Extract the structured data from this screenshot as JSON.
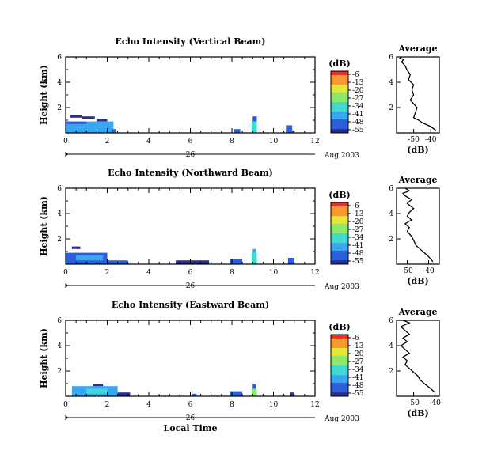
{
  "chart_data": [
    {
      "type": "heatmap",
      "title": "Echo Intensity (Vertical Beam)",
      "ylabel": "Height (km)",
      "xlim": [
        0,
        12
      ],
      "ylim": [
        0,
        6
      ],
      "xticks": [
        "0",
        "2",
        "4",
        "6",
        "8",
        "10",
        "12"
      ],
      "yticks": [
        "2",
        "4",
        "6"
      ],
      "date_label": "26",
      "month_label": "Aug 2003",
      "colorbar": {
        "label": "(dB)",
        "ticks": [
          "-6",
          "-13",
          "-20",
          "-27",
          "-34",
          "-41",
          "-48",
          "-55"
        ],
        "range": [
          -55,
          -6
        ]
      },
      "cells": [
        {
          "x": [
            0.2,
            0.8
          ],
          "y": [
            1.2,
            1.4
          ],
          "db": -55
        },
        {
          "x": [
            0.8,
            1.4
          ],
          "y": [
            1.1,
            1.3
          ],
          "db": -52
        },
        {
          "x": [
            1.5,
            2.0
          ],
          "y": [
            0.9,
            1.1
          ],
          "db": -53
        },
        {
          "x": [
            0.0,
            2.3
          ],
          "y": [
            0.0,
            0.9
          ],
          "db": -44
        },
        {
          "x": [
            0.0,
            1.0
          ],
          "y": [
            0.7,
            0.9
          ],
          "db": -50
        },
        {
          "x": [
            1.0,
            2.0
          ],
          "y": [
            0.1,
            0.8
          ],
          "db": -40
        },
        {
          "x": [
            2.2,
            2.4
          ],
          "y": [
            0.0,
            0.3
          ],
          "db": -49
        },
        {
          "x": [
            8.1,
            8.4
          ],
          "y": [
            0.0,
            0.3
          ],
          "db": -51
        },
        {
          "x": [
            8.95,
            9.2
          ],
          "y": [
            0.0,
            0.9
          ],
          "db": -36
        },
        {
          "x": [
            9.0,
            9.2
          ],
          "y": [
            0.9,
            1.3
          ],
          "db": -46
        },
        {
          "x": [
            10.6,
            10.9
          ],
          "y": [
            0.0,
            0.6
          ],
          "db": -50
        },
        {
          "x": [
            10.9,
            11.0
          ],
          "y": [
            0.0,
            0.2
          ],
          "db": -53
        }
      ],
      "average": {
        "title": "Average",
        "xlabel": "(dB)",
        "xlim": [
          -60,
          -35
        ],
        "xticks": [
          "-50",
          "-40"
        ],
        "yticks": [
          "2",
          "4",
          "6"
        ],
        "ylim": [
          0,
          6
        ],
        "x": [
          -37,
          -40,
          -45,
          -47,
          -50,
          -49,
          -48,
          -50,
          -52,
          -50,
          -51,
          -50,
          -53,
          -52,
          -54,
          -55,
          -57,
          -56,
          -58,
          -57
        ],
        "y": [
          0.2,
          0.5,
          0.8,
          1.0,
          1.2,
          1.6,
          2.0,
          2.3,
          2.6,
          3.0,
          3.4,
          3.8,
          4.2,
          4.6,
          5.0,
          5.3,
          5.6,
          5.8,
          5.9,
          6.0
        ]
      }
    },
    {
      "type": "heatmap",
      "title": "Echo Intensity (Northward Beam)",
      "ylabel": "Height (km)",
      "xlim": [
        0,
        12
      ],
      "ylim": [
        0,
        6
      ],
      "xticks": [
        "0",
        "2",
        "4",
        "6",
        "8",
        "10",
        "12"
      ],
      "yticks": [
        "2",
        "4",
        "6"
      ],
      "date_label": "26",
      "month_label": "Aug 2003",
      "colorbar": {
        "label": "(dB)",
        "ticks": [
          "-6",
          "-13",
          "-20",
          "-27",
          "-34",
          "-41",
          "-48",
          "-55"
        ],
        "range": [
          -55,
          -6
        ]
      },
      "cells": [
        {
          "x": [
            0.3,
            0.7
          ],
          "y": [
            1.2,
            1.4
          ],
          "db": -55
        },
        {
          "x": [
            0.0,
            2.0
          ],
          "y": [
            0.0,
            0.9
          ],
          "db": -45
        },
        {
          "x": [
            0.5,
            1.8
          ],
          "y": [
            0.3,
            0.7
          ],
          "db": -38
        },
        {
          "x": [
            2.0,
            3.0
          ],
          "y": [
            0.0,
            0.3
          ],
          "db": -50
        },
        {
          "x": [
            5.3,
            6.9
          ],
          "y": [
            0.0,
            0.3
          ],
          "db": -52
        },
        {
          "x": [
            7.9,
            8.5
          ],
          "y": [
            0.0,
            0.4
          ],
          "db": -51
        },
        {
          "x": [
            8.95,
            9.2
          ],
          "y": [
            0.0,
            0.9
          ],
          "db": -34
        },
        {
          "x": [
            9.0,
            9.15
          ],
          "y": [
            0.9,
            1.2
          ],
          "db": -44
        },
        {
          "x": [
            10.7,
            11.0
          ],
          "y": [
            0.0,
            0.5
          ],
          "db": -50
        }
      ],
      "average": {
        "title": "Average",
        "xlabel": "(dB)",
        "xlim": [
          -55,
          -35
        ],
        "xticks": [
          "-50",
          "-40"
        ],
        "yticks": [
          "2",
          "4",
          "6"
        ],
        "ylim": [
          0,
          6
        ],
        "x": [
          -38,
          -40,
          -42,
          -44,
          -46,
          -47,
          -48,
          -50,
          -49,
          -51,
          -48,
          -50,
          -49,
          -47,
          -50,
          -48,
          -51,
          -52,
          -49,
          -51
        ],
        "y": [
          0.2,
          0.6,
          0.9,
          1.2,
          1.5,
          1.9,
          2.2,
          2.6,
          2.9,
          3.2,
          3.5,
          3.8,
          4.1,
          4.4,
          4.8,
          5.1,
          5.4,
          5.6,
          5.8,
          6.0
        ]
      }
    },
    {
      "type": "heatmap",
      "title": "Echo Intensity (Eastward Beam)",
      "ylabel": "Height (km)",
      "xlabel": "Local Time",
      "xlim": [
        0,
        12
      ],
      "ylim": [
        0,
        6
      ],
      "xticks": [
        "0",
        "2",
        "4",
        "6",
        "8",
        "10",
        "12"
      ],
      "yticks": [
        "2",
        "4",
        "6"
      ],
      "date_label": "26",
      "month_label": "Aug 2003",
      "colorbar": {
        "label": "(dB)",
        "ticks": [
          "-6",
          "-13",
          "-20",
          "-27",
          "-34",
          "-41",
          "-48",
          "-55"
        ],
        "range": [
          -55,
          -6
        ]
      },
      "cells": [
        {
          "x": [
            0.3,
            2.5
          ],
          "y": [
            0.0,
            0.8
          ],
          "db": -44
        },
        {
          "x": [
            1.0,
            2.0
          ],
          "y": [
            0.2,
            0.6
          ],
          "db": -36
        },
        {
          "x": [
            1.3,
            1.8
          ],
          "y": [
            0.8,
            1.0
          ],
          "db": -55
        },
        {
          "x": [
            2.5,
            3.1
          ],
          "y": [
            0.0,
            0.3
          ],
          "db": -52
        },
        {
          "x": [
            6.1,
            6.3
          ],
          "y": [
            0.0,
            0.2
          ],
          "db": -50
        },
        {
          "x": [
            7.9,
            8.5
          ],
          "y": [
            0.0,
            0.4
          ],
          "db": -49
        },
        {
          "x": [
            8.95,
            9.2
          ],
          "y": [
            0.0,
            0.6
          ],
          "db": -30
        },
        {
          "x": [
            9.0,
            9.15
          ],
          "y": [
            0.6,
            1.0
          ],
          "db": -45
        },
        {
          "x": [
            10.8,
            11.0
          ],
          "y": [
            0.0,
            0.3
          ],
          "db": -52
        }
      ],
      "average": {
        "title": "Average",
        "xlabel": "(dB)",
        "xlim": [
          -58,
          -38
        ],
        "xticks": [
          "-50",
          "-40"
        ],
        "yticks": [
          "2",
          "4",
          "6"
        ],
        "ylim": [
          0,
          6
        ],
        "x": [
          -40,
          -42,
          -45,
          -47,
          -48,
          -50,
          -52,
          -54,
          -53,
          -55,
          -52,
          -54,
          -56,
          -53,
          -55,
          -52,
          -54,
          -56,
          -52,
          -55
        ],
        "y": [
          0.3,
          0.6,
          1.0,
          1.3,
          1.6,
          1.9,
          2.2,
          2.5,
          2.8,
          3.1,
          3.4,
          3.7,
          4.0,
          4.3,
          4.6,
          4.9,
          5.2,
          5.5,
          5.8,
          6.0
        ]
      }
    }
  ],
  "colors": {
    "scale": [
      "#2b2f86",
      "#2d5fd8",
      "#39a7f0",
      "#43d9d0",
      "#8ce86a",
      "#e6e63a",
      "#f49a2f",
      "#e8312a"
    ],
    "axis": "#000000",
    "line": "#000000"
  }
}
